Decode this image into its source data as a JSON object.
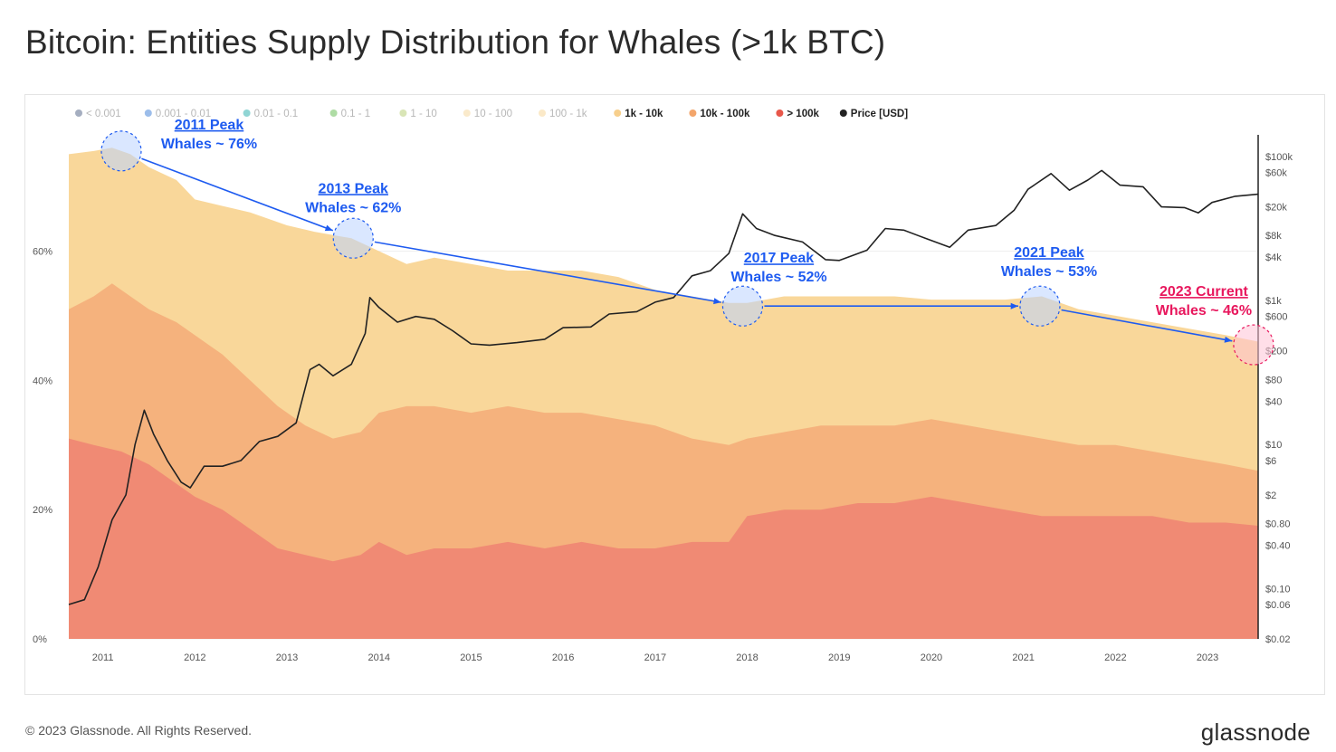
{
  "title": "Bitcoin: Entities Supply Distribution for Whales (>1k BTC)",
  "footer": {
    "copyright": "© 2023 Glassnode. All Rights Reserved.",
    "logo": "glassnode"
  },
  "watermark": "glassnode",
  "chart_data": {
    "type": "area",
    "legend_position": "top-left",
    "legend": [
      {
        "label": "< 0.001",
        "color": "#5b6b8c",
        "muted": true
      },
      {
        "label": "0.001 - 0.01",
        "color": "#4a86d8",
        "muted": true
      },
      {
        "label": "0.01 - 0.1",
        "color": "#35b3b0",
        "muted": true
      },
      {
        "label": "0.1 - 1",
        "color": "#6bbf59",
        "muted": true,
        "hatched": true
      },
      {
        "label": "1 - 10",
        "color": "#b9cf7a",
        "muted": true
      },
      {
        "label": "10 - 100",
        "color": "#f5d9a0",
        "muted": true
      },
      {
        "label": "100 - 1k",
        "color": "#f7d79a",
        "muted": true
      },
      {
        "label": "1k - 10k",
        "color": "#f7cf8c",
        "muted": false
      },
      {
        "label": "10k - 100k",
        "color": "#f3a56b",
        "muted": false
      },
      {
        "label": "> 100k",
        "color": "#e8574a",
        "muted": false,
        "hatched": true
      },
      {
        "label": "Price [USD]",
        "color": "#222222",
        "muted": false
      }
    ],
    "x_ticks": [
      "2011",
      "2012",
      "2013",
      "2014",
      "2015",
      "2016",
      "2017",
      "2018",
      "2019",
      "2020",
      "2021",
      "2022",
      "2023"
    ],
    "x_range": [
      2010.63,
      2023.55
    ],
    "y_left": {
      "ticks": [
        "0%",
        "20%",
        "40%",
        "60%"
      ],
      "range": [
        0,
        78
      ]
    },
    "y_right": {
      "scale": "log",
      "range": [
        0.02,
        200000
      ],
      "ticks": [
        {
          "label": "$0.02",
          "value": 0.02
        },
        {
          "label": "$0.06",
          "value": 0.06
        },
        {
          "label": "$0.10",
          "value": 0.1
        },
        {
          "label": "$0.40",
          "value": 0.4
        },
        {
          "label": "$0.80",
          "value": 0.8
        },
        {
          "label": "$2",
          "value": 2
        },
        {
          "label": "$6",
          "value": 6
        },
        {
          "label": "$10",
          "value": 10
        },
        {
          "label": "$40",
          "value": 40
        },
        {
          "label": "$80",
          "value": 80
        },
        {
          "label": "$200",
          "value": 200
        },
        {
          "label": "$600",
          "value": 600
        },
        {
          "label": "$1k",
          "value": 1000
        },
        {
          "label": "$4k",
          "value": 4000
        },
        {
          "label": "$8k",
          "value": 8000
        },
        {
          "label": "$20k",
          "value": 20000
        },
        {
          "label": "$60k",
          "value": 60000
        },
        {
          "label": "$100k",
          "value": 100000
        }
      ]
    },
    "series": [
      {
        "name": "> 100k",
        "color": "#f08a74",
        "points": [
          [
            2010.63,
            31
          ],
          [
            2010.9,
            30
          ],
          [
            2011.2,
            29
          ],
          [
            2011.5,
            27
          ],
          [
            2011.8,
            24
          ],
          [
            2012.0,
            22
          ],
          [
            2012.3,
            20
          ],
          [
            2012.6,
            17
          ],
          [
            2012.9,
            14
          ],
          [
            2013.2,
            13
          ],
          [
            2013.5,
            12
          ],
          [
            2013.8,
            13
          ],
          [
            2014.0,
            15
          ],
          [
            2014.3,
            13
          ],
          [
            2014.6,
            14
          ],
          [
            2015.0,
            14
          ],
          [
            2015.4,
            15
          ],
          [
            2015.8,
            14
          ],
          [
            2016.2,
            15
          ],
          [
            2016.6,
            14
          ],
          [
            2017.0,
            14
          ],
          [
            2017.4,
            15
          ],
          [
            2017.8,
            15
          ],
          [
            2018.0,
            19
          ],
          [
            2018.4,
            20
          ],
          [
            2018.8,
            20
          ],
          [
            2019.2,
            21
          ],
          [
            2019.6,
            21
          ],
          [
            2020.0,
            22
          ],
          [
            2020.4,
            21
          ],
          [
            2020.8,
            20
          ],
          [
            2021.2,
            19
          ],
          [
            2021.6,
            19
          ],
          [
            2022.0,
            19
          ],
          [
            2022.4,
            19
          ],
          [
            2022.8,
            18
          ],
          [
            2023.2,
            18
          ],
          [
            2023.55,
            17.5
          ]
        ]
      },
      {
        "name": "10k - 100k",
        "color": "#f5b27d",
        "points": [
          [
            2010.63,
            51
          ],
          [
            2010.9,
            53
          ],
          [
            2011.1,
            55
          ],
          [
            2011.3,
            53
          ],
          [
            2011.5,
            51
          ],
          [
            2011.8,
            49
          ],
          [
            2012.0,
            47
          ],
          [
            2012.3,
            44
          ],
          [
            2012.6,
            40
          ],
          [
            2012.9,
            36
          ],
          [
            2013.2,
            33
          ],
          [
            2013.5,
            31
          ],
          [
            2013.8,
            32
          ],
          [
            2014.0,
            35
          ],
          [
            2014.3,
            36
          ],
          [
            2014.6,
            36
          ],
          [
            2015.0,
            35
          ],
          [
            2015.4,
            36
          ],
          [
            2015.8,
            35
          ],
          [
            2016.2,
            35
          ],
          [
            2016.6,
            34
          ],
          [
            2017.0,
            33
          ],
          [
            2017.4,
            31
          ],
          [
            2017.8,
            30
          ],
          [
            2018.0,
            31
          ],
          [
            2018.4,
            32
          ],
          [
            2018.8,
            33
          ],
          [
            2019.2,
            33
          ],
          [
            2019.6,
            33
          ],
          [
            2020.0,
            34
          ],
          [
            2020.4,
            33
          ],
          [
            2020.8,
            32
          ],
          [
            2021.2,
            31
          ],
          [
            2021.6,
            30
          ],
          [
            2022.0,
            30
          ],
          [
            2022.4,
            29
          ],
          [
            2022.8,
            28
          ],
          [
            2023.2,
            27
          ],
          [
            2023.55,
            26
          ]
        ]
      },
      {
        "name": "1k - 10k",
        "color": "#f9d79a",
        "points": [
          [
            2010.63,
            75
          ],
          [
            2010.9,
            75.5
          ],
          [
            2011.1,
            76
          ],
          [
            2011.3,
            75
          ],
          [
            2011.5,
            73
          ],
          [
            2011.8,
            71
          ],
          [
            2012.0,
            68
          ],
          [
            2012.3,
            67
          ],
          [
            2012.6,
            66
          ],
          [
            2013.0,
            64
          ],
          [
            2013.3,
            63
          ],
          [
            2013.7,
            62
          ],
          [
            2014.0,
            60
          ],
          [
            2014.3,
            58
          ],
          [
            2014.6,
            59
          ],
          [
            2015.0,
            58
          ],
          [
            2015.4,
            57
          ],
          [
            2015.8,
            57
          ],
          [
            2016.2,
            57
          ],
          [
            2016.6,
            56
          ],
          [
            2017.0,
            54
          ],
          [
            2017.4,
            53
          ],
          [
            2017.8,
            52
          ],
          [
            2018.0,
            52
          ],
          [
            2018.4,
            53
          ],
          [
            2018.8,
            53
          ],
          [
            2019.2,
            53
          ],
          [
            2019.6,
            53
          ],
          [
            2020.0,
            52.5
          ],
          [
            2020.4,
            52.5
          ],
          [
            2020.8,
            52.5
          ],
          [
            2021.2,
            53
          ],
          [
            2021.6,
            51
          ],
          [
            2022.0,
            50
          ],
          [
            2022.4,
            49
          ],
          [
            2022.8,
            48
          ],
          [
            2023.2,
            47
          ],
          [
            2023.55,
            46
          ]
        ]
      },
      {
        "name": "Price [USD]",
        "color": "#222222",
        "axis": "right",
        "points": [
          [
            2010.63,
            0.06
          ],
          [
            2010.8,
            0.07
          ],
          [
            2010.95,
            0.2
          ],
          [
            2011.1,
            0.9
          ],
          [
            2011.25,
            2
          ],
          [
            2011.35,
            10
          ],
          [
            2011.45,
            30
          ],
          [
            2011.55,
            14
          ],
          [
            2011.7,
            6
          ],
          [
            2011.85,
            3
          ],
          [
            2011.95,
            2.5
          ],
          [
            2012.1,
            5
          ],
          [
            2012.3,
            5
          ],
          [
            2012.5,
            6
          ],
          [
            2012.7,
            11
          ],
          [
            2012.9,
            13
          ],
          [
            2013.1,
            20
          ],
          [
            2013.25,
            110
          ],
          [
            2013.35,
            130
          ],
          [
            2013.5,
            90
          ],
          [
            2013.7,
            130
          ],
          [
            2013.85,
            350
          ],
          [
            2013.9,
            1100
          ],
          [
            2014.0,
            800
          ],
          [
            2014.2,
            500
          ],
          [
            2014.4,
            600
          ],
          [
            2014.6,
            550
          ],
          [
            2014.8,
            380
          ],
          [
            2015.0,
            250
          ],
          [
            2015.2,
            240
          ],
          [
            2015.5,
            260
          ],
          [
            2015.8,
            290
          ],
          [
            2016.0,
            420
          ],
          [
            2016.3,
            430
          ],
          [
            2016.5,
            650
          ],
          [
            2016.8,
            700
          ],
          [
            2017.0,
            950
          ],
          [
            2017.2,
            1100
          ],
          [
            2017.4,
            2200
          ],
          [
            2017.6,
            2600
          ],
          [
            2017.8,
            4500
          ],
          [
            2017.95,
            16000
          ],
          [
            2018.1,
            10000
          ],
          [
            2018.3,
            8000
          ],
          [
            2018.6,
            6500
          ],
          [
            2018.85,
            3700
          ],
          [
            2019.0,
            3600
          ],
          [
            2019.3,
            5000
          ],
          [
            2019.5,
            10000
          ],
          [
            2019.7,
            9500
          ],
          [
            2019.95,
            7200
          ],
          [
            2020.2,
            5500
          ],
          [
            2020.4,
            9500
          ],
          [
            2020.7,
            11000
          ],
          [
            2020.9,
            18000
          ],
          [
            2021.05,
            35000
          ],
          [
            2021.3,
            58000
          ],
          [
            2021.5,
            34000
          ],
          [
            2021.7,
            47000
          ],
          [
            2021.85,
            64000
          ],
          [
            2022.05,
            40000
          ],
          [
            2022.3,
            38000
          ],
          [
            2022.5,
            20000
          ],
          [
            2022.75,
            19500
          ],
          [
            2022.9,
            16500
          ],
          [
            2023.05,
            23000
          ],
          [
            2023.3,
            28000
          ],
          [
            2023.55,
            30000
          ]
        ]
      }
    ],
    "annotations": [
      {
        "line1": "2011 Peak",
        "line2": "Whales ~ 76%",
        "color": "#1e5bf0",
        "x": 2011.2,
        "y": 75.5
      },
      {
        "line1": "2013 Peak",
        "line2": "Whales ~ 62%",
        "color": "#1e5bf0",
        "x": 2013.72,
        "y": 62
      },
      {
        "line1": "2017 Peak",
        "line2": "Whales ~ 52%",
        "color": "#1e5bf0",
        "x": 2017.95,
        "y": 51.5
      },
      {
        "line1": "2021 Peak",
        "line2": "Whales ~ 53%",
        "color": "#1e5bf0",
        "x": 2021.18,
        "y": 51.5
      },
      {
        "line1": "2023 Current",
        "line2": "Whales ~ 46%",
        "color": "#e8175d",
        "x": 2023.5,
        "y": 45.5
      }
    ]
  }
}
